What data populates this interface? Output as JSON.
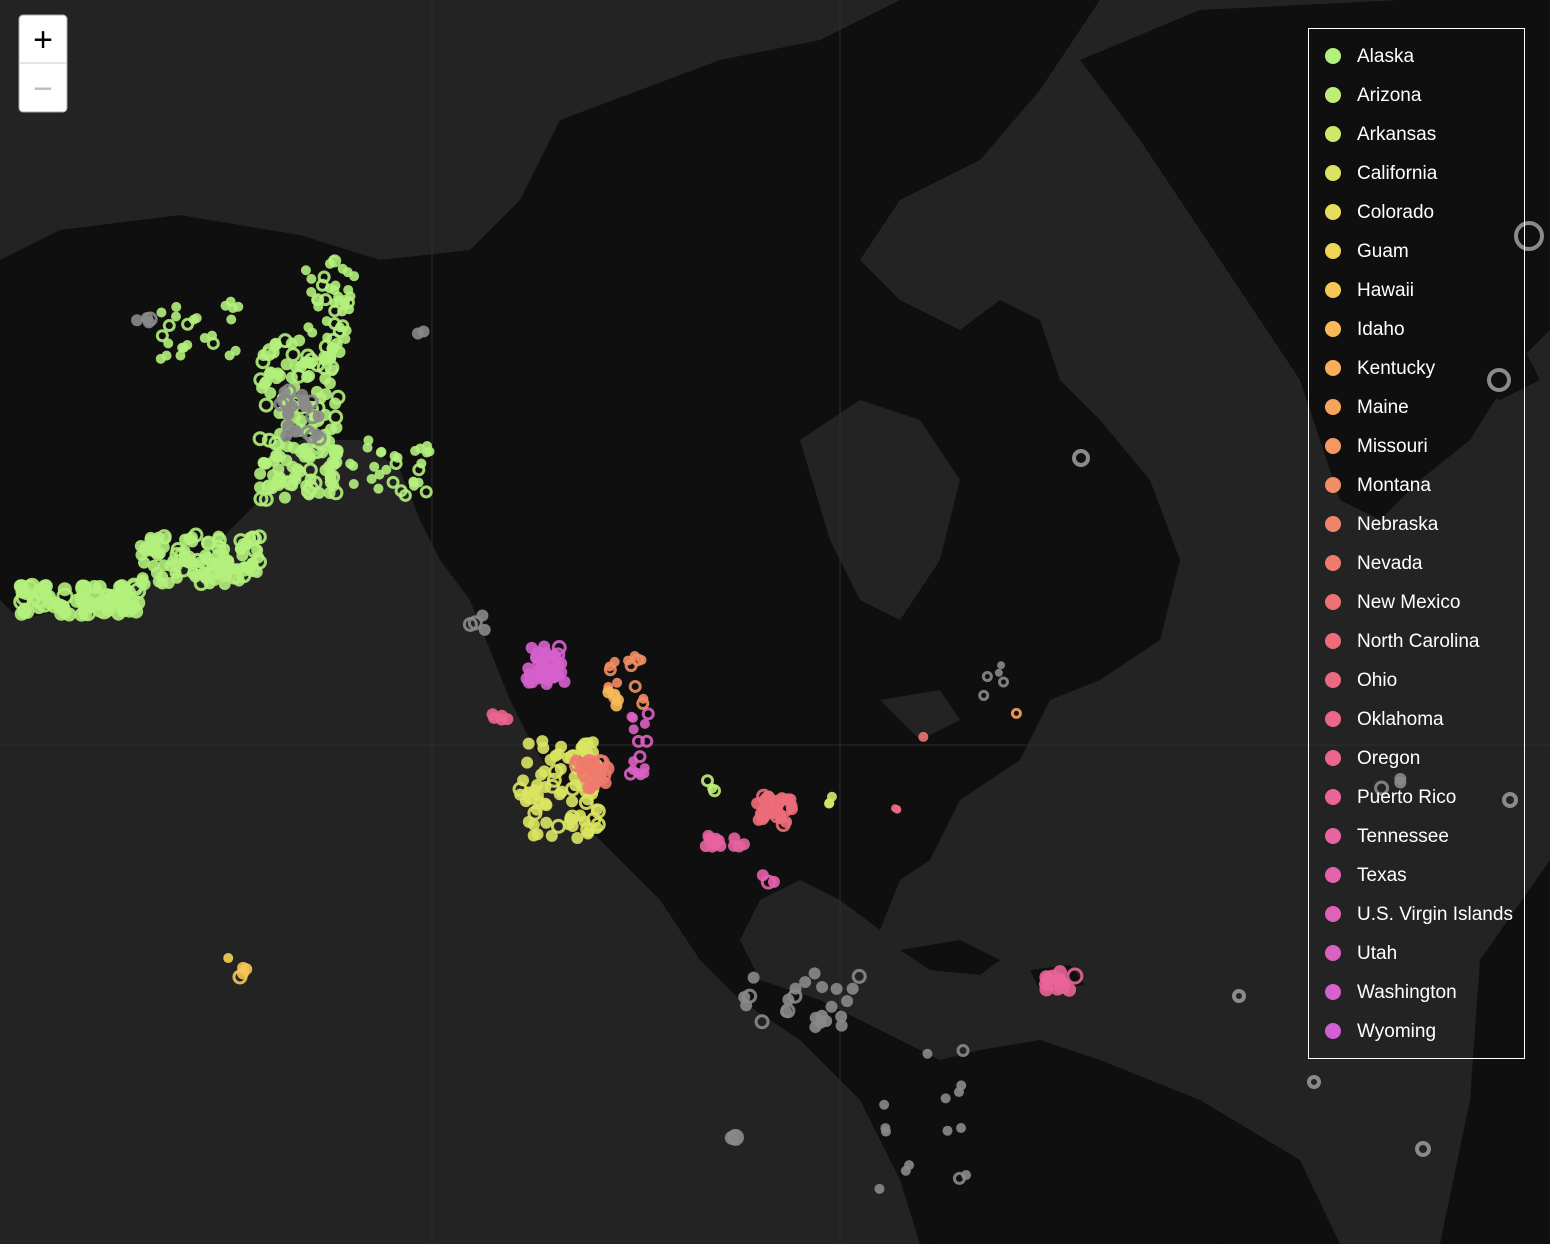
{
  "zoom": {
    "in": "+",
    "out": "−"
  },
  "legend": {
    "items": [
      {
        "label": "Alaska",
        "color": "#b4f07c"
      },
      {
        "label": "Arizona",
        "color": "#bfee76"
      },
      {
        "label": "Arkansas",
        "color": "#cde96c"
      },
      {
        "label": "California",
        "color": "#dae462"
      },
      {
        "label": "Colorado",
        "color": "#e5dd5b"
      },
      {
        "label": "Guam",
        "color": "#f0d458"
      },
      {
        "label": "Hawaii",
        "color": "#f6c757"
      },
      {
        "label": "Idaho",
        "color": "#f8ba58"
      },
      {
        "label": "Kentucky",
        "color": "#f8ae5a"
      },
      {
        "label": "Maine",
        "color": "#f6a45d"
      },
      {
        "label": "Missouri",
        "color": "#f39960"
      },
      {
        "label": "Montana",
        "color": "#f18e64"
      },
      {
        "label": "Nebraska",
        "color": "#ef8468"
      },
      {
        "label": "Nevada",
        "color": "#ee7b6d"
      },
      {
        "label": "New Mexico",
        "color": "#ed7373"
      },
      {
        "label": "North Carolina",
        "color": "#ec6d79"
      },
      {
        "label": "Ohio",
        "color": "#ec6a80"
      },
      {
        "label": "Oklahoma",
        "color": "#ec6787"
      },
      {
        "label": "Oregon",
        "color": "#ec658e"
      },
      {
        "label": "Puerto Rico",
        "color": "#ea6497"
      },
      {
        "label": "Tennessee",
        "color": "#e763a1"
      },
      {
        "label": "Texas",
        "color": "#e462ab"
      },
      {
        "label": "U.S. Virgin Islands",
        "color": "#df62b6"
      },
      {
        "label": "Utah",
        "color": "#da61c2"
      },
      {
        "label": "Washington",
        "color": "#d660cc"
      },
      {
        "label": "Wyoming",
        "color": "#d35fd4"
      }
    ]
  }
}
